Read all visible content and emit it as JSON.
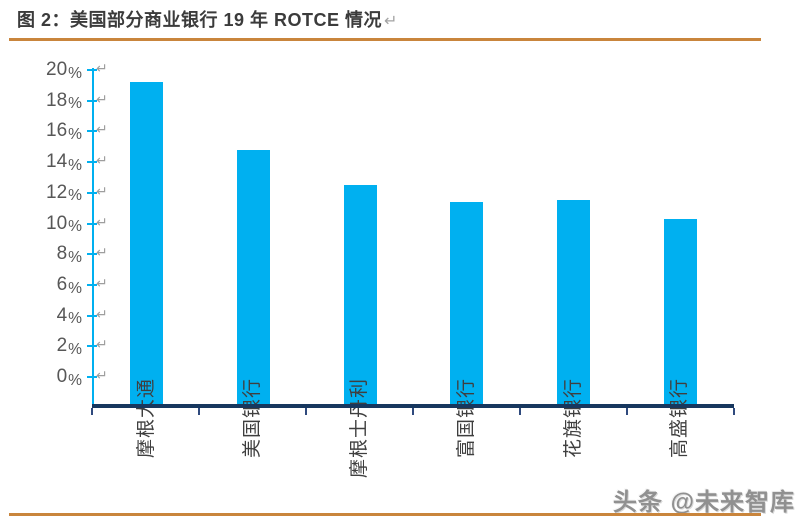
{
  "figure": {
    "title": "图 2：美国部分商业银行 19 年 ROTCE 情况",
    "paragraph_mark": "↵",
    "watermark": "头条 @未来智库"
  },
  "colors": {
    "bar": "#00B0F0",
    "value_axis": "#00B0F0",
    "category_axis": "#17375E",
    "category_tick": "#2F4A7D",
    "divider_orange": "#C9853C"
  },
  "chart_data": {
    "type": "bar",
    "title": "美国部分商业银行19年ROTCE情况",
    "categories": [
      "摩根大通",
      "美国银行",
      "摩根士丹利",
      "富国银行",
      "花旗银行",
      "高盛银行"
    ],
    "values": [
      19.2,
      14.8,
      12.5,
      11.4,
      11.5,
      10.3
    ],
    "unit": "%",
    "xlabel": "",
    "ylabel": "",
    "ylim": [
      0,
      20
    ],
    "ytick_step": 2,
    "yticks": [
      20,
      18,
      16,
      14,
      12,
      10,
      8,
      6,
      4,
      2,
      0
    ],
    "grid": false,
    "legend": "none",
    "bar_color": "#00B0F0"
  }
}
